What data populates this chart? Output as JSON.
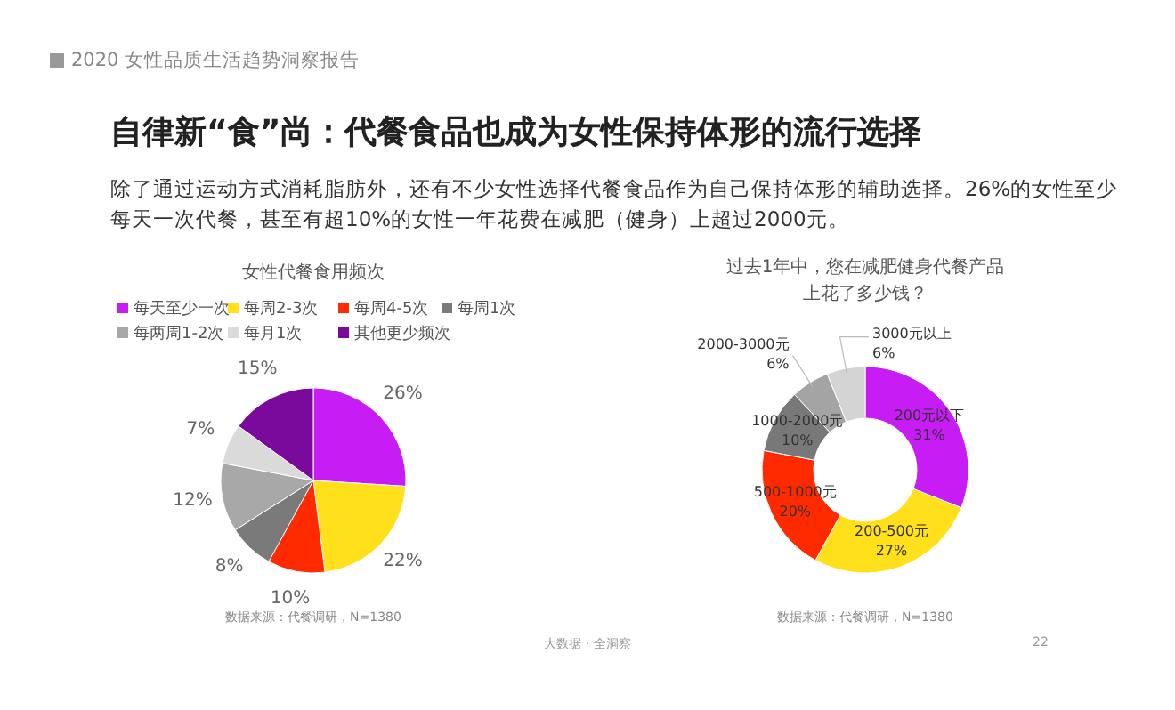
{
  "chart_data": [
    {
      "type": "other",
      "title": "自律新“食”尚：代餐食品也成为女性保持体形的流行选择",
      "subtitle": "除了通过运动方式消耗脂肪外，还有不少女性选择代餐食品作为自己保持体形的辅助选择。26%的女性至少每天一次代餐，甚至有超10%的女性一年花费在减肥（健身）上超过2000元。",
      "annotations": [
        "2020 女性品质生活趋势洞察报告",
        "大数据 · 全洞察",
        "22"
      ]
    },
    {
      "type": "pie",
      "title": "女性代餐食用频次",
      "legend": "top",
      "categories": [
        "每天至少一次",
        "每周2-3次",
        "每周4-5次",
        "每周1次",
        "每两周1-2次",
        "每月1次",
        "其他更少频次"
      ],
      "values": [
        26,
        22,
        10,
        8,
        12,
        7,
        15
      ],
      "value_labels": [
        "26%",
        "22%",
        "10%",
        "8%",
        "12%",
        "7%",
        "15%"
      ],
      "colors": [
        "#c81cf5",
        "#ffe01a",
        "#ff2a00",
        "#7a7a7a",
        "#a8a8a8",
        "#dadada",
        "#7a0a9c"
      ],
      "annotations": [
        "数据来源：代餐调研，N=1380"
      ]
    },
    {
      "type": "donut",
      "title": "过去1年中，您在减肥健身代餐产品上花了多少钱？",
      "legend": false,
      "categories": [
        "200元以下",
        "200-500元",
        "500-1000元",
        "1000-2000元",
        "2000-3000元",
        "3000元以上"
      ],
      "values": [
        31,
        27,
        20,
        10,
        6,
        6
      ],
      "value_labels": [
        "31%",
        "27%",
        "20%",
        "10%",
        "6%",
        "6%"
      ],
      "colors": [
        "#c81cf5",
        "#ffe01a",
        "#ff2a00",
        "#787878",
        "#a4a4a4",
        "#d4d4d4"
      ],
      "annotations": [
        "数据来源：代餐调研，N=1380"
      ]
    }
  ]
}
